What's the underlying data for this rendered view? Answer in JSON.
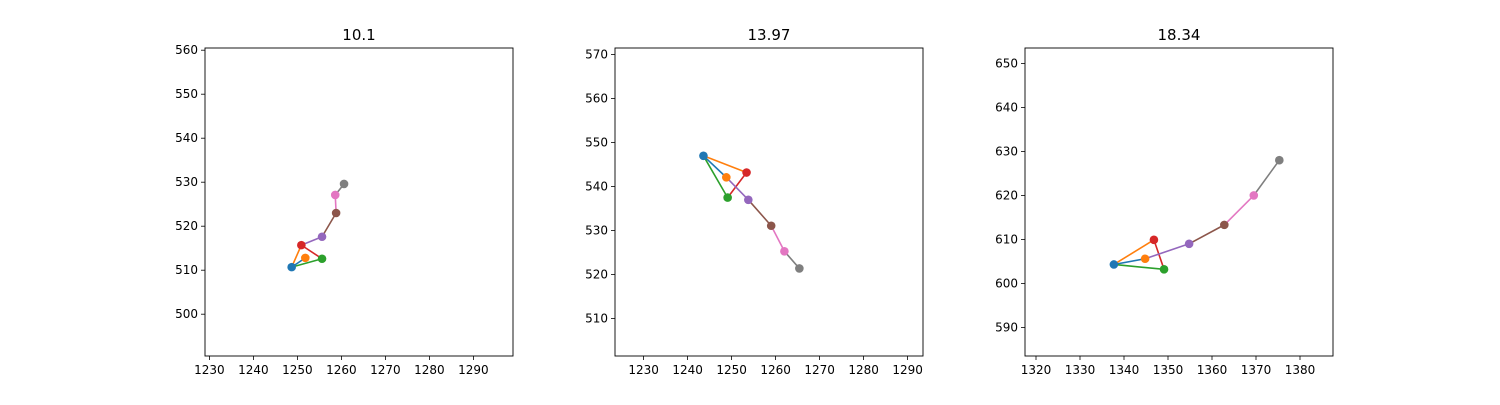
{
  "chart_data": [
    {
      "type": "line",
      "title": "10.1",
      "xlim": [
        1229,
        1299
      ],
      "ylim": [
        490.5,
        560.5
      ],
      "xticks": [
        1230,
        1240,
        1250,
        1260,
        1270,
        1280,
        1290
      ],
      "yticks": [
        500,
        510,
        520,
        530,
        540,
        550,
        560
      ],
      "points": [
        {
          "x": 1248.7,
          "y": 510.7,
          "color": "#1f77b4"
        },
        {
          "x": 1251.8,
          "y": 512.8,
          "color": "#ff7f0e"
        },
        {
          "x": 1255.6,
          "y": 512.6,
          "color": "#2ca02c"
        },
        {
          "x": 1250.9,
          "y": 515.7,
          "color": "#d62728"
        },
        {
          "x": 1255.6,
          "y": 517.6,
          "color": "#9467bd"
        },
        {
          "x": 1258.8,
          "y": 523.0,
          "color": "#8c564b"
        },
        {
          "x": 1258.6,
          "y": 527.1,
          "color": "#e377c2"
        },
        {
          "x": 1260.6,
          "y": 529.6,
          "color": "#7f7f7f"
        }
      ],
      "segments": [
        {
          "from": 0,
          "to": 1,
          "color": "#1f77b4"
        },
        {
          "from": 0,
          "to": 3,
          "color": "#ff7f0e"
        },
        {
          "from": 0,
          "to": 2,
          "color": "#2ca02c"
        },
        {
          "from": 2,
          "to": 3,
          "color": "#d62728"
        },
        {
          "from": 3,
          "to": 4,
          "color": "#9467bd"
        },
        {
          "from": 4,
          "to": 5,
          "color": "#8c564b"
        },
        {
          "from": 5,
          "to": 6,
          "color": "#e377c2"
        },
        {
          "from": 6,
          "to": 7,
          "color": "#7f7f7f"
        }
      ]
    },
    {
      "type": "line",
      "title": "13.97",
      "xlim": [
        1223.5,
        1293.5
      ],
      "ylim": [
        501.5,
        571.5
      ],
      "xticks": [
        1230,
        1240,
        1250,
        1260,
        1270,
        1280,
        1290
      ],
      "yticks": [
        510,
        520,
        530,
        540,
        550,
        560,
        570
      ],
      "points": [
        {
          "x": 1243.6,
          "y": 547.0,
          "color": "#1f77b4"
        },
        {
          "x": 1248.8,
          "y": 542.1,
          "color": "#ff7f0e"
        },
        {
          "x": 1249.1,
          "y": 537.5,
          "color": "#2ca02c"
        },
        {
          "x": 1253.4,
          "y": 543.2,
          "color": "#d62728"
        },
        {
          "x": 1253.8,
          "y": 537.0,
          "color": "#9467bd"
        },
        {
          "x": 1259.0,
          "y": 531.1,
          "color": "#8c564b"
        },
        {
          "x": 1262.0,
          "y": 525.3,
          "color": "#e377c2"
        },
        {
          "x": 1265.4,
          "y": 521.4,
          "color": "#7f7f7f"
        }
      ],
      "segments": [
        {
          "from": 0,
          "to": 1,
          "color": "#1f77b4"
        },
        {
          "from": 0,
          "to": 3,
          "color": "#ff7f0e"
        },
        {
          "from": 0,
          "to": 2,
          "color": "#2ca02c"
        },
        {
          "from": 2,
          "to": 3,
          "color": "#d62728"
        },
        {
          "from": 1,
          "to": 4,
          "color": "#9467bd"
        },
        {
          "from": 4,
          "to": 5,
          "color": "#8c564b"
        },
        {
          "from": 5,
          "to": 6,
          "color": "#e377c2"
        },
        {
          "from": 6,
          "to": 7,
          "color": "#7f7f7f"
        }
      ]
    },
    {
      "type": "line",
      "title": "18.34",
      "xlim": [
        1317.5,
        1387.5
      ],
      "ylim": [
        583.5,
        653.5
      ],
      "xticks": [
        1320,
        1330,
        1340,
        1350,
        1360,
        1370,
        1380
      ],
      "yticks": [
        590,
        600,
        610,
        620,
        630,
        640,
        650
      ],
      "points": [
        {
          "x": 1337.7,
          "y": 604.3,
          "color": "#1f77b4"
        },
        {
          "x": 1344.8,
          "y": 605.6,
          "color": "#ff7f0e"
        },
        {
          "x": 1349.1,
          "y": 603.2,
          "color": "#2ca02c"
        },
        {
          "x": 1346.8,
          "y": 609.9,
          "color": "#d62728"
        },
        {
          "x": 1354.8,
          "y": 609.0,
          "color": "#9467bd"
        },
        {
          "x": 1362.8,
          "y": 613.3,
          "color": "#8c564b"
        },
        {
          "x": 1369.5,
          "y": 620.0,
          "color": "#e377c2"
        },
        {
          "x": 1375.3,
          "y": 628.0,
          "color": "#7f7f7f"
        }
      ],
      "segments": [
        {
          "from": 0,
          "to": 1,
          "color": "#1f77b4"
        },
        {
          "from": 0,
          "to": 3,
          "color": "#ff7f0e"
        },
        {
          "from": 0,
          "to": 2,
          "color": "#2ca02c"
        },
        {
          "from": 2,
          "to": 3,
          "color": "#d62728"
        },
        {
          "from": 1,
          "to": 4,
          "color": "#9467bd"
        },
        {
          "from": 4,
          "to": 5,
          "color": "#8c564b"
        },
        {
          "from": 5,
          "to": 6,
          "color": "#e377c2"
        },
        {
          "from": 6,
          "to": 7,
          "color": "#7f7f7f"
        }
      ]
    }
  ]
}
